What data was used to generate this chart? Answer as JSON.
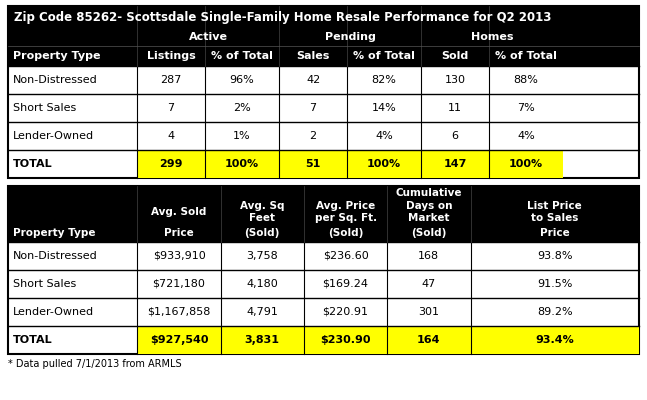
{
  "title": "Zip Code 85262- Scottsdale Single-Family Home Resale Performance for Q2 2013",
  "t1_hdr1": [
    "",
    "Active",
    "",
    "Pending",
    "",
    "Homes",
    ""
  ],
  "t1_hdr2": [
    "Property Type",
    "Listings",
    "% of Total",
    "Sales",
    "% of Total",
    "Sold",
    "% of Total"
  ],
  "t1_data": [
    [
      "Non-Distressed",
      "287",
      "96%",
      "42",
      "82%",
      "130",
      "88%"
    ],
    [
      "Short Sales",
      "7",
      "2%",
      "7",
      "14%",
      "11",
      "7%"
    ],
    [
      "Lender-Owned",
      "4",
      "1%",
      "2",
      "4%",
      "6",
      "4%"
    ],
    [
      "TOTAL",
      "299",
      "100%",
      "51",
      "100%",
      "147",
      "100%"
    ]
  ],
  "t2_hdr_cumulative": "Cumulative",
  "t2_hdr_mid": [
    "",
    "Avg. Sold",
    "Avg. Sq\nFeet",
    "Avg. Price\nper Sq. Ft.",
    "Days on\nMarket",
    "List Price\nto Sales"
  ],
  "t2_hdr_bot": [
    "Property Type",
    "Price",
    "(Sold)",
    "(Sold)",
    "(Sold)",
    "Price"
  ],
  "t2_data": [
    [
      "Non-Distressed",
      "$933,910",
      "3,758",
      "$236.60",
      "168",
      "93.8%"
    ],
    [
      "Short Sales",
      "$721,180",
      "4,180",
      "$169.24",
      "47",
      "91.5%"
    ],
    [
      "Lender-Owned",
      "$1,167,858",
      "4,791",
      "$220.91",
      "301",
      "89.2%"
    ],
    [
      "TOTAL",
      "$927,540",
      "3,831",
      "$230.90",
      "164",
      "93.4%"
    ]
  ],
  "footnote": "* Data pulled 7/1/2013 from ARMLS",
  "yellow": "#FFFF00",
  "black": "#000000",
  "white": "#FFFFFF"
}
